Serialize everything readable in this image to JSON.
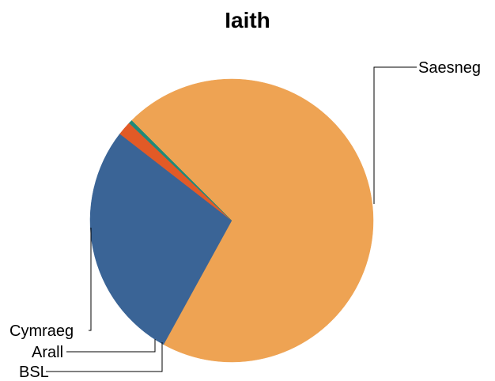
{
  "chart_data": {
    "type": "pie",
    "title": "Iaith",
    "slices": [
      {
        "label": "Saesneg",
        "value": 70.5,
        "color": "#EEA353"
      },
      {
        "label": "Cymraeg",
        "value": 27.5,
        "color": "#3A6496"
      },
      {
        "label": "Arall",
        "value": 1.6,
        "color": "#E25A26"
      },
      {
        "label": "BSL",
        "value": 0.4,
        "color": "#1F8A7A"
      }
    ],
    "legend": "none"
  }
}
